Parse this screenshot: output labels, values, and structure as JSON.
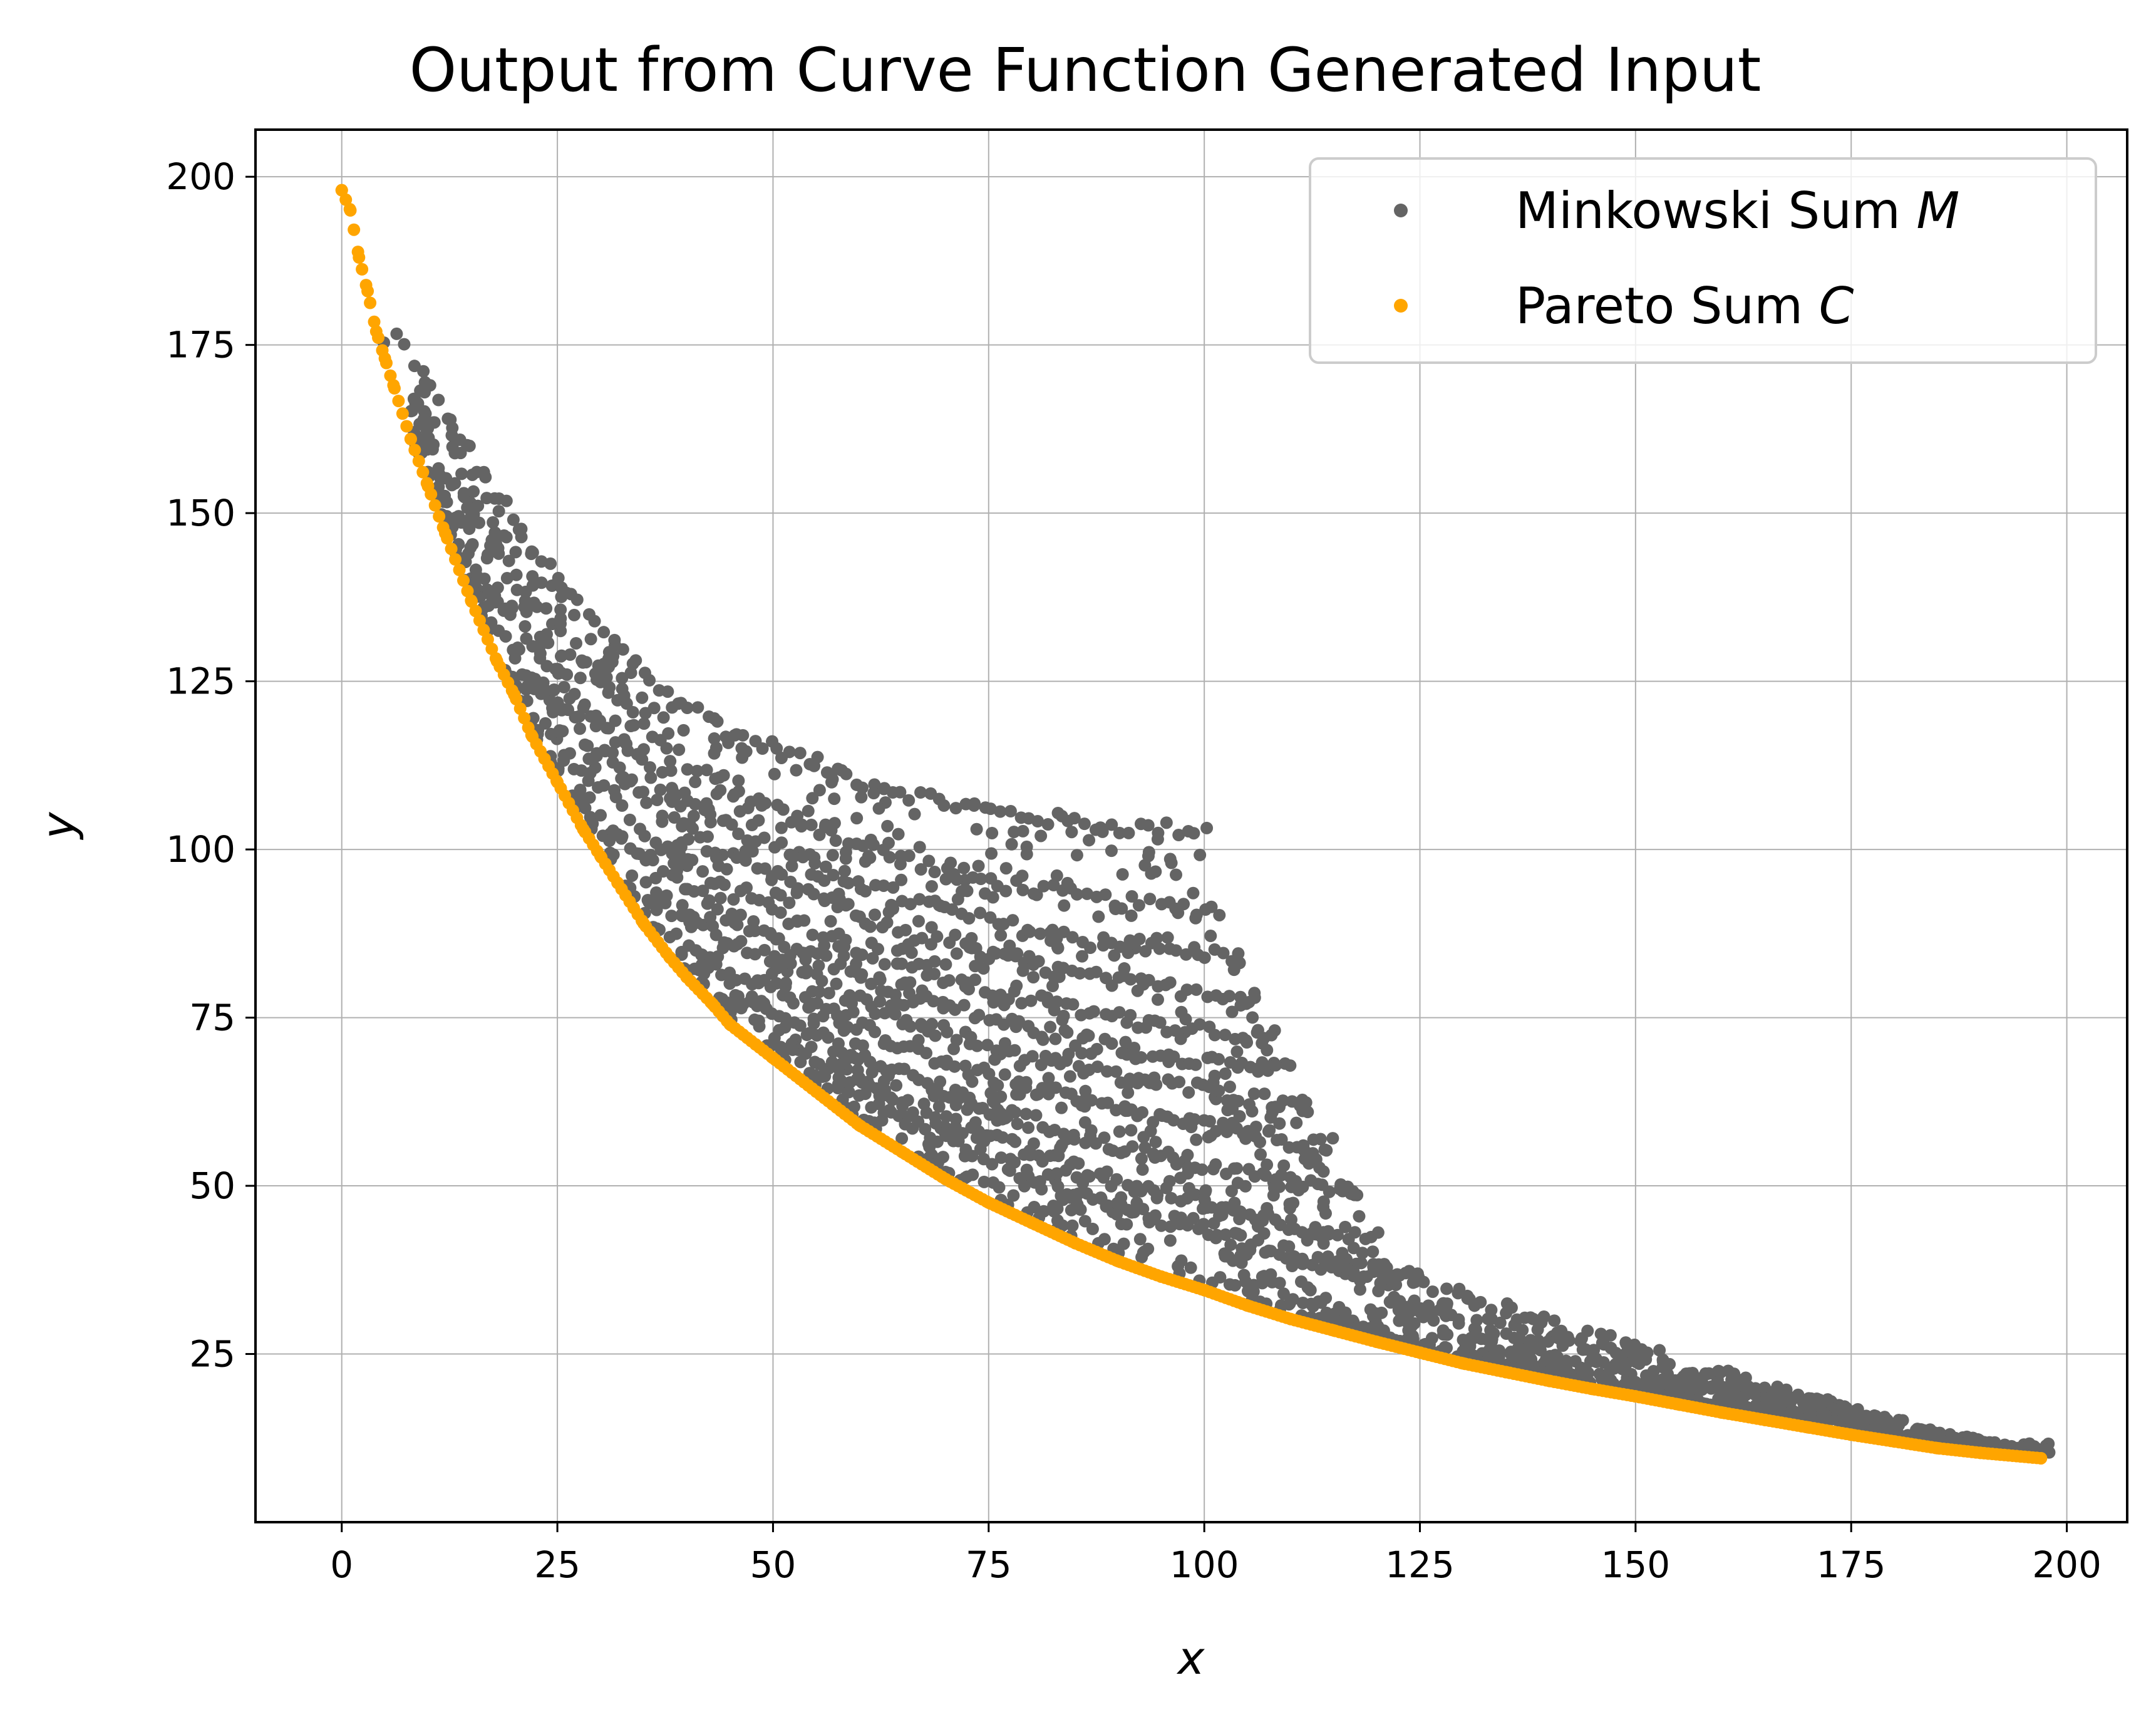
{
  "chart_data": {
    "type": "scatter",
    "title": "Output from Curve Function Generated Input",
    "xlabel": "x",
    "ylabel": "y",
    "xlim": [
      -10,
      207
    ],
    "ylim": [
      0,
      207
    ],
    "grid": true,
    "legend_position": "top-right",
    "x_ticks": [
      0,
      25,
      50,
      75,
      100,
      125,
      150,
      175,
      200
    ],
    "y_ticks": [
      25,
      50,
      75,
      100,
      125,
      150,
      175,
      200
    ],
    "x_tick_labels": [
      "0",
      "25",
      "50",
      "75",
      "100",
      "125",
      "150",
      "175",
      "200"
    ],
    "y_tick_labels": [
      "25",
      "50",
      "75",
      "100",
      "125",
      "150",
      "175",
      "200"
    ],
    "colors": {
      "minkowski": "#646464",
      "pareto": "#ffa500",
      "grid": "#b0b0b0"
    },
    "series": [
      {
        "name": "Minkowski Sum M",
        "label_prefix": "Minkowski Sum ",
        "label_symbol": "M",
        "color": "#646464",
        "description": "scattered points between Pareto front and band curves",
        "band_curves": [
          {
            "x_start": 5,
            "x_end": 100,
            "y_at_end": 103
          },
          {
            "x_start": 10,
            "x_end": 102,
            "y_at_end": 91
          },
          {
            "x_start": 15,
            "x_end": 104,
            "y_at_end": 84
          },
          {
            "x_start": 20,
            "x_end": 106,
            "y_at_end": 78
          },
          {
            "x_start": 25,
            "x_end": 108,
            "y_at_end": 72
          },
          {
            "x_start": 30,
            "x_end": 110,
            "y_at_end": 67
          },
          {
            "x_start": 35,
            "x_end": 112,
            "y_at_end": 62
          },
          {
            "x_start": 40,
            "x_end": 115,
            "y_at_end": 56
          },
          {
            "x_start": 45,
            "x_end": 118,
            "y_at_end": 49
          },
          {
            "x_start": 50,
            "x_end": 120,
            "y_at_end": 42
          },
          {
            "x_start": 55,
            "x_end": 125,
            "y_at_end": 36
          }
        ]
      },
      {
        "name": "Pareto Sum C",
        "label_prefix": "Pareto Sum ",
        "label_symbol": "C",
        "color": "#ffa500",
        "x": [
          0,
          1,
          2,
          3,
          4,
          5,
          6,
          8,
          10,
          12,
          15,
          18,
          20,
          22,
          25,
          28,
          30,
          32,
          35,
          38,
          40,
          43,
          45,
          48,
          50,
          55,
          60,
          65,
          70,
          75,
          80,
          85,
          90,
          95,
          100,
          105,
          110,
          115,
          120,
          125,
          130,
          135,
          140,
          145,
          150,
          155,
          160,
          165,
          170,
          175,
          180,
          185,
          190,
          197
        ],
        "y": [
          198,
          195,
          188,
          183,
          177,
          173,
          169,
          161,
          154,
          147,
          137,
          128,
          123,
          117,
          110,
          103,
          99,
          95,
          89,
          84,
          81,
          77,
          74,
          71,
          69,
          64,
          59,
          55,
          51,
          47.5,
          44.5,
          41.5,
          38.8,
          36.5,
          34.5,
          32.2,
          30.2,
          28.5,
          26.8,
          25.2,
          23.6,
          22.3,
          21,
          19.8,
          18.7,
          17.5,
          16.3,
          15.2,
          14.1,
          13,
          12,
          11,
          10.3,
          9.5
        ]
      }
    ]
  }
}
